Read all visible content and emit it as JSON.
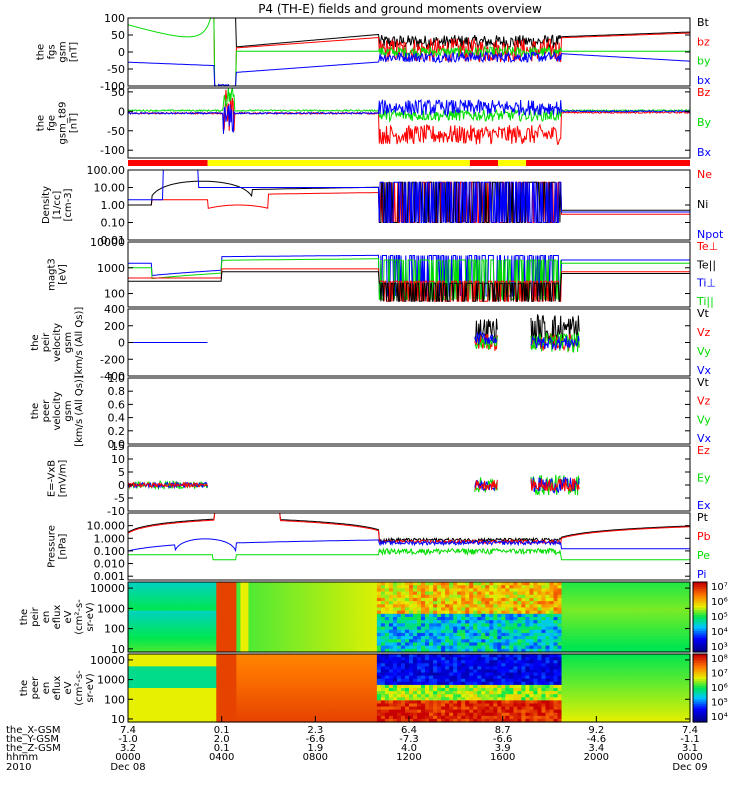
{
  "title": "P4 (TH-E) fields and ground moments overview",
  "colors": {
    "black": "#000000",
    "red": "#ff0000",
    "green": "#00dd00",
    "blue": "#0000ff",
    "yellow": "#ffff00"
  },
  "chart_data": {
    "type": "line",
    "panels": [
      {
        "id": "bfgs",
        "ylabel": [
          "the",
          "fgs",
          "gsm",
          "[nT]"
        ],
        "ylim": [
          -100,
          100
        ],
        "yticks": [
          100,
          50,
          0,
          -50,
          -100
        ],
        "legend": [
          {
            "name": "Bt",
            "color": "black"
          },
          {
            "name": "bz",
            "color": "red"
          },
          {
            "name": "by",
            "color": "green"
          },
          {
            "name": "bx",
            "color": "blue"
          }
        ]
      },
      {
        "id": "bfge",
        "ylabel": [
          "the",
          "fge",
          "gsm_t89",
          "[nT]"
        ],
        "ylim": [
          -120,
          60
        ],
        "yticks": [
          50,
          0,
          -50,
          -100
        ],
        "legend": [
          {
            "name": "Bz",
            "color": "red"
          },
          {
            "name": "By",
            "color": "green"
          },
          {
            "name": "Bx",
            "color": "blue"
          }
        ]
      },
      {
        "id": "density",
        "ylabel": [
          "Density",
          "[1/cc]",
          "[cm-3]"
        ],
        "ylim": [
          0.01,
          100
        ],
        "log": true,
        "yticks": [
          100,
          10,
          1,
          0.1,
          0.01
        ],
        "yticklabels": [
          "100.00",
          "10.00",
          "1.00",
          "0.10",
          "0.01"
        ],
        "legend": [
          {
            "name": "Ne",
            "color": "red"
          },
          {
            "name": "Ni",
            "color": "black"
          },
          {
            "name": "Npot",
            "color": "blue"
          }
        ]
      },
      {
        "id": "temp",
        "ylabel": [
          "magt3",
          "[eV]"
        ],
        "ylim": [
          30,
          10000
        ],
        "log": true,
        "yticks": [
          10000,
          1000,
          100
        ],
        "legend": [
          {
            "name": "Te⊥",
            "color": "red"
          },
          {
            "name": "Te||",
            "color": "black"
          },
          {
            "name": "Ti⊥",
            "color": "blue"
          },
          {
            "name": "Ti||",
            "color": "green"
          }
        ]
      },
      {
        "id": "peir_v",
        "ylabel": [
          "the",
          "peir",
          "velocity",
          "gsm",
          "[km/s (All Qs)]"
        ],
        "ylim": [
          -400,
          400
        ],
        "yticks": [
          400,
          200,
          0,
          -200,
          -400
        ],
        "legend": [
          {
            "name": "Vt",
            "color": "black"
          },
          {
            "name": "Vz",
            "color": "red"
          },
          {
            "name": "Vy",
            "color": "green"
          },
          {
            "name": "Vx",
            "color": "blue"
          }
        ]
      },
      {
        "id": "peer_v",
        "ylabel": [
          "the",
          "peer",
          "velocity",
          "gsm",
          "[km/s (All Qs)]"
        ],
        "ylim": [
          0,
          1
        ],
        "yticks": [
          1.0,
          0.8,
          0.6,
          0.4,
          0.2,
          0.0
        ],
        "yticklabels": [
          "1.0",
          "0.8",
          "0.6",
          "0.4",
          "0.2",
          "0.0"
        ],
        "legend": [
          {
            "name": "Vt",
            "color": "black"
          },
          {
            "name": "Vz",
            "color": "red"
          },
          {
            "name": "Vy",
            "color": "green"
          },
          {
            "name": "Vx",
            "color": "blue"
          }
        ]
      },
      {
        "id": "efield",
        "ylabel": [
          "E=-VxB",
          "[mV/m]"
        ],
        "ylim": [
          -10,
          15
        ],
        "yticks": [
          15,
          10,
          5,
          0,
          -5,
          -10
        ],
        "legend": [
          {
            "name": "Ez",
            "color": "red"
          },
          {
            "name": "Ey",
            "color": "green"
          },
          {
            "name": "Ex",
            "color": "blue"
          }
        ]
      },
      {
        "id": "pressure",
        "ylabel": [
          "Pressure",
          "[nPa]"
        ],
        "ylim": [
          0.0005,
          100
        ],
        "log": true,
        "yticks": [
          10,
          1,
          0.1,
          0.01,
          0.001
        ],
        "yticklabels": [
          "10.000",
          "1.000",
          "0.100",
          "0.010",
          "0.001"
        ],
        "legend": [
          {
            "name": "Pt",
            "color": "black"
          },
          {
            "name": "Pb",
            "color": "red"
          },
          {
            "name": "Pe",
            "color": "green"
          },
          {
            "name": "Pi",
            "color": "blue"
          }
        ]
      },
      {
        "id": "peir_spec",
        "type": "heatmap",
        "ylabel": [
          "the",
          "peir",
          "en",
          "eflux",
          "eV",
          "(cm²-s-",
          "sr-eV)"
        ],
        "ylim": [
          7,
          20000
        ],
        "log": true,
        "yticks": [
          10000,
          1000,
          100,
          10
        ],
        "colorbar": {
          "labels": [
            "10⁷",
            "10⁶",
            "10⁵",
            "10⁴",
            "10³"
          ]
        }
      },
      {
        "id": "peer_spec",
        "type": "heatmap",
        "ylabel": [
          "the",
          "peer",
          "en",
          "eflux",
          "eV",
          "(cm²-s-",
          "sr-eV)"
        ],
        "ylim": [
          7,
          20000
        ],
        "log": true,
        "yticks": [
          10000,
          1000,
          100,
          10
        ],
        "colorbar": {
          "labels": [
            "10⁸",
            "10⁷",
            "10⁶",
            "10⁵",
            "10⁴"
          ]
        }
      }
    ],
    "x_ticks": [
      {
        "hhmm": "0000",
        "X": "7.4",
        "Y": "-1.0",
        "Z": "3.2",
        "date": "Dec 08"
      },
      {
        "hhmm": "0400",
        "X": "0.1",
        "Y": "2.0",
        "Z": "0.1",
        "date": ""
      },
      {
        "hhmm": "0800",
        "X": "2.3",
        "Y": "-6.6",
        "Z": "1.9",
        "date": ""
      },
      {
        "hhmm": "1200",
        "X": "6.4",
        "Y": "-7.3",
        "Z": "4.0",
        "date": ""
      },
      {
        "hhmm": "1600",
        "X": "8.7",
        "Y": "-6.6",
        "Z": "3.9",
        "date": ""
      },
      {
        "hhmm": "2000",
        "X": "9.2",
        "Y": "-4.6",
        "Z": "3.4",
        "date": ""
      },
      {
        "hhmm": "0000",
        "X": "7.4",
        "Y": "-1.1",
        "Z": "3.1",
        "date": "Dec 09"
      }
    ],
    "x_row_labels": [
      "the_X-GSM",
      "the_Y-GSM",
      "the_Z-GSM",
      "hhmm",
      "2010"
    ],
    "mode_bar": [
      {
        "start_h": 0.0,
        "end_h": 3.4,
        "color": "red"
      },
      {
        "start_h": 3.4,
        "end_h": 14.6,
        "color": "yellow"
      },
      {
        "start_h": 14.6,
        "end_h": 15.8,
        "color": "red"
      },
      {
        "start_h": 15.8,
        "end_h": 17.0,
        "color": "yellow"
      },
      {
        "start_h": 17.0,
        "end_h": 24.0,
        "color": "red"
      }
    ]
  }
}
